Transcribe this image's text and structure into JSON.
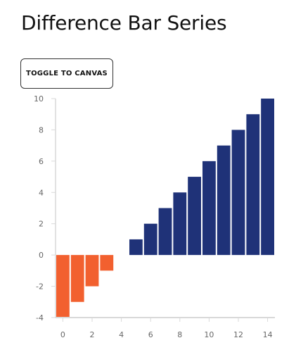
{
  "page": {
    "title": "Difference Bar Series",
    "toggle_label": "TOGGLE TO CANVAS"
  },
  "colors": {
    "positive": "#1f3278",
    "negative": "#f2602f",
    "axis": "#d9d9d9",
    "tick_text": "#666666"
  },
  "chart_data": {
    "type": "bar",
    "x": [
      0,
      1,
      2,
      3,
      5,
      6,
      7,
      8,
      9,
      10,
      11,
      12,
      13,
      14
    ],
    "values": [
      -4,
      -3,
      -2,
      -1,
      1,
      2,
      3,
      4,
      5,
      6,
      7,
      8,
      9,
      10
    ],
    "xlim": [
      -0.5,
      14.5
    ],
    "ylim": [
      -4,
      10
    ],
    "x_ticks": [
      "0",
      "2",
      "4",
      "6",
      "8",
      "10",
      "12",
      "14"
    ],
    "y_ticks": [
      "-4",
      "-2",
      "0",
      "2",
      "4",
      "6",
      "8",
      "10"
    ],
    "title": "",
    "xlabel": "",
    "ylabel": "",
    "grid": false
  }
}
